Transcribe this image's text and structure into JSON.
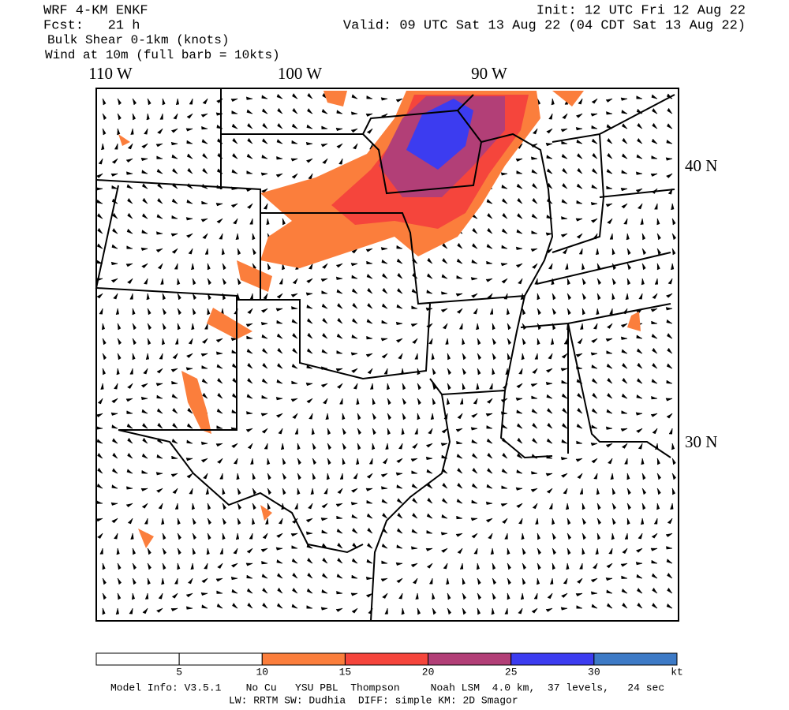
{
  "header": {
    "model": "WRF 4-KM ENKF",
    "forecast": "Fcst:   21 h",
    "field": "Bulk Shear 0-1km (knots)",
    "wind": "Wind at 10m (full barb = 10kts)",
    "init": "Init: 12 UTC Fri 12 Aug 22",
    "valid": "Valid: 09 UTC Sat 13 Aug 22 (04 CDT Sat 13 Aug 22)"
  },
  "map": {
    "lon_labels": [
      "110 W",
      "100 W",
      "90 W"
    ],
    "lat_labels": [
      "40 N",
      "30 N"
    ]
  },
  "colorbar": {
    "labels": [
      5,
      10,
      15,
      20,
      25,
      30
    ],
    "unit": "kt",
    "colors": [
      "#ffffff",
      "#ffffff",
      "#fb7e3c",
      "#f5453c",
      "#b23f77",
      "#3c3cf0",
      "#3d7ac6"
    ]
  },
  "footer": {
    "line1": "Model Info: V3.5.1    No Cu   YSU PBL  Thompson     Noah LSM  4.0 km,  37 levels,   24 sec",
    "line2": "LW: RRTM SW: Dudhia  DIFF: simple KM: 2D Smagor"
  }
}
